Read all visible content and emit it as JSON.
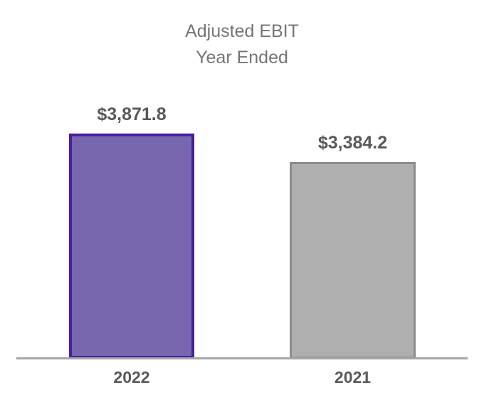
{
  "chart_data": {
    "type": "bar",
    "title_lines": [
      "Adjusted EBIT",
      "Year Ended"
    ],
    "categories": [
      "2022",
      "2021"
    ],
    "values": [
      3871.8,
      3384.2
    ],
    "data_labels": [
      "$3,871.8",
      "$3,384.2"
    ],
    "bar_styles": [
      {
        "fill": "#7767AE",
        "border": "#4B1EA0"
      },
      {
        "fill": "#AFAFAF",
        "border": "#8C8C8C"
      }
    ],
    "ylim": [
      0,
      3871.8
    ],
    "xlabel": "",
    "ylabel": "",
    "grid": false,
    "legend": "none",
    "colors": {
      "title_text": "#757575",
      "label_text": "#595959",
      "axis_line": "#A6A6A6",
      "background": "#FFFFFF"
    }
  }
}
